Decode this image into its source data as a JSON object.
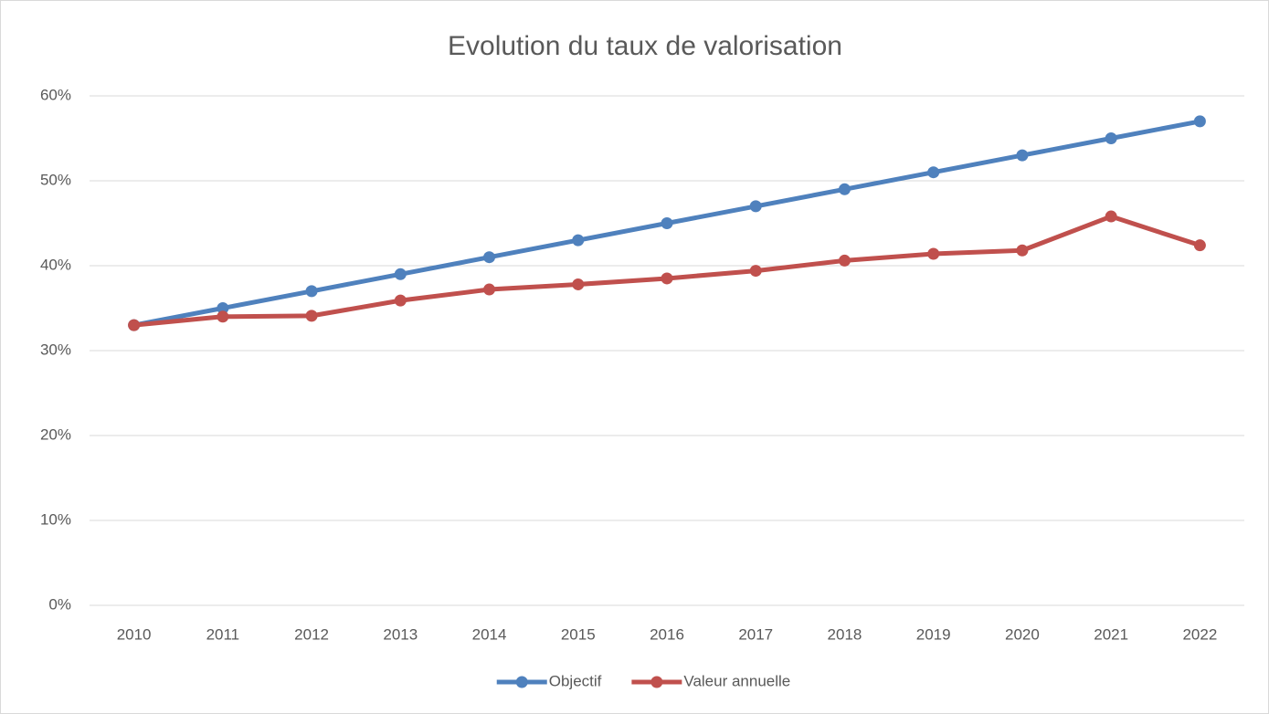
{
  "chart_data": {
    "type": "line",
    "title": "Evolution du taux de valorisation",
    "categories": [
      "2010",
      "2011",
      "2012",
      "2013",
      "2014",
      "2015",
      "2016",
      "2017",
      "2018",
      "2019",
      "2020",
      "2021",
      "2022"
    ],
    "series": [
      {
        "name": "Objectif",
        "color": "#4f81bd",
        "values": [
          33,
          35,
          37,
          39,
          41,
          43,
          45,
          47,
          49,
          51,
          53,
          55,
          57
        ]
      },
      {
        "name": "Valeur annuelle",
        "color": "#c0504d",
        "values": [
          33,
          34,
          34.1,
          35.9,
          37.2,
          37.8,
          38.5,
          39.4,
          40.6,
          41.4,
          41.8,
          45.8,
          42.4
        ]
      }
    ],
    "ylim": [
      0,
      60
    ],
    "yticks": [
      {
        "value": 0,
        "label": "0%"
      },
      {
        "value": 10,
        "label": "10%"
      },
      {
        "value": 20,
        "label": "20%"
      },
      {
        "value": 30,
        "label": "30%"
      },
      {
        "value": 40,
        "label": "40%"
      },
      {
        "value": 50,
        "label": "50%"
      },
      {
        "value": 60,
        "label": "60%"
      }
    ],
    "grid": true,
    "legend": "bottom"
  }
}
